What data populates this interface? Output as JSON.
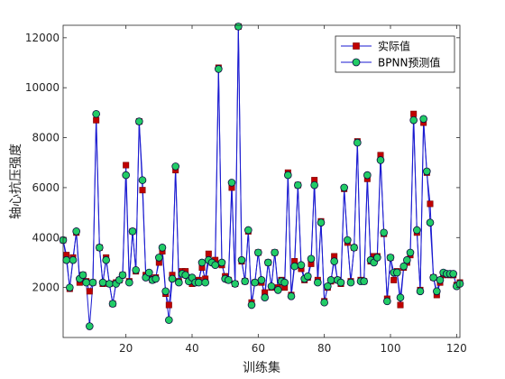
{
  "chart_data": {
    "type": "line",
    "xlabel": "训练集",
    "ylabel": "轴心抗压强度",
    "xlim": [
      1,
      121
    ],
    "ylim": [
      0,
      12500
    ],
    "xticks": [
      20,
      40,
      60,
      80,
      100,
      120
    ],
    "yticks": [
      2000,
      4000,
      6000,
      8000,
      10000,
      12000
    ],
    "xtick_labels": [
      "20",
      "40",
      "60",
      "80",
      "100",
      "120"
    ],
    "ytick_labels": [
      "2000",
      "4000",
      "6000",
      "8000",
      "10000",
      "12000"
    ],
    "legend_position": "top-right",
    "series": [
      {
        "name": "实际值",
        "color": "#c00000",
        "marker": "square",
        "values": [
          3900,
          3300,
          1950,
          3200,
          4200,
          2200,
          2500,
          2250,
          1850,
          2200,
          8700,
          3600,
          2150,
          3200,
          2150,
          1350,
          2200,
          2300,
          2500,
          6900,
          2250,
          4250,
          2650,
          8650,
          5900,
          2500,
          2550,
          2300,
          2400,
          3000,
          3450,
          1750,
          1300,
          2500,
          6700,
          2250,
          2650,
          2650,
          2400,
          2150,
          2250,
          2300,
          2800,
          2350,
          3350,
          3000,
          3100,
          10800,
          2900,
          2450,
          2300,
          6000,
          2150,
          12450,
          3050,
          2250,
          4250,
          1400,
          2200,
          3400,
          2200,
          1800,
          3000,
          2000,
          3400,
          2000,
          2300,
          2000,
          6600,
          1700,
          3050,
          6100,
          2750,
          2300,
          2400,
          2950,
          6300,
          2300,
          4650,
          1450,
          2000,
          2250,
          3250,
          2300,
          2150,
          5950,
          3800,
          2250,
          3600,
          7850,
          2300,
          2250,
          6350,
          3050,
          3250,
          3250,
          7300,
          4150,
          1550,
          3200,
          2300,
          2650,
          1300,
          2800,
          3000,
          3300,
          8950,
          4200,
          1900,
          8600,
          6600,
          5350,
          2400,
          1700,
          2200,
          2500,
          2550,
          2500,
          2500,
          2100,
          2200
        ]
      },
      {
        "name": "BPNN预测值",
        "color": "#1a1ad0",
        "marker_fill": "#22cc66",
        "marker": "circle",
        "values": [
          3900,
          3100,
          2000,
          3100,
          4250,
          2350,
          2500,
          2200,
          450,
          2200,
          8950,
          3600,
          2200,
          3100,
          2150,
          1350,
          2150,
          2300,
          2500,
          6500,
          2200,
          4250,
          2700,
          8650,
          6300,
          2400,
          2600,
          2300,
          2350,
          3200,
          3600,
          1850,
          700,
          2350,
          6850,
          2200,
          2550,
          2500,
          2250,
          2400,
          2200,
          2200,
          3000,
          2200,
          3100,
          3000,
          2900,
          10750,
          3000,
          2350,
          2300,
          6200,
          2150,
          12450,
          3100,
          2250,
          4300,
          1300,
          2200,
          3400,
          2300,
          1600,
          3000,
          2050,
          3400,
          1900,
          2250,
          2200,
          6500,
          1650,
          2850,
          6100,
          2900,
          2350,
          2450,
          3150,
          6100,
          2200,
          4600,
          1400,
          2050,
          2300,
          3050,
          2300,
          2200,
          6000,
          3900,
          2200,
          3600,
          7800,
          2250,
          2250,
          6500,
          3100,
          3000,
          3200,
          7100,
          4200,
          1450,
          3200,
          2600,
          2600,
          1600,
          2850,
          3100,
          3400,
          8700,
          4300,
          1850,
          8750,
          6650,
          4600,
          2400,
          1850,
          2300,
          2600,
          2550,
          2550,
          2550,
          2050,
          2150
        ]
      }
    ]
  }
}
